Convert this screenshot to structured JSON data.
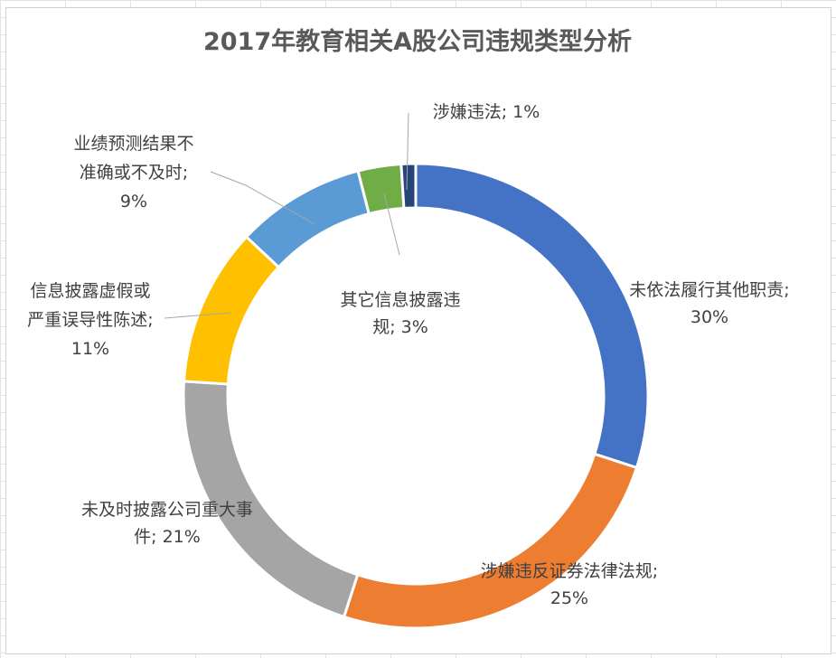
{
  "chart_data": {
    "type": "pie",
    "variant": "doughnut",
    "title": "2017年教育相关A股公司违规类型分析",
    "slices": [
      {
        "label": "未依法履行其他职责",
        "value": 30,
        "value_text": "30%",
        "color": "#4472C4"
      },
      {
        "label": "涉嫌违反证券法律法规",
        "value": 25,
        "value_text": "25%",
        "color": "#ED7D31"
      },
      {
        "label": "未及时披露公司重大事件",
        "value": 21,
        "value_text": "21%",
        "color": "#A5A5A5"
      },
      {
        "label": "信息披露虚假或严重误导性陈述",
        "value": 11,
        "value_text": "11%",
        "color": "#FFC000"
      },
      {
        "label": "业绩预测结果不准确或不及时",
        "value": 9,
        "value_text": "9%",
        "color": "#5B9BD5"
      },
      {
        "label": "其它信息披露违规",
        "value": 3,
        "value_text": "3%",
        "color": "#70AD47"
      },
      {
        "label": "涉嫌违法",
        "value": 1,
        "value_text": "1%",
        "color": "#264478"
      }
    ],
    "data_label_lines": [
      [
        "未依法履行其他职责;",
        "30%"
      ],
      [
        "涉嫌违反证券法律法规;",
        "25%"
      ],
      [
        "未及时披露公司重大事",
        "件; 21%"
      ],
      [
        "信息披露虚假或",
        "严重误导性陈述;",
        "11%"
      ],
      [
        "业绩预测结果不",
        "准确或不及时;",
        "9%"
      ],
      [
        "其它信息披露违",
        "规; 3%"
      ],
      [
        "涉嫌违法; 1%"
      ]
    ],
    "legend": "none"
  }
}
